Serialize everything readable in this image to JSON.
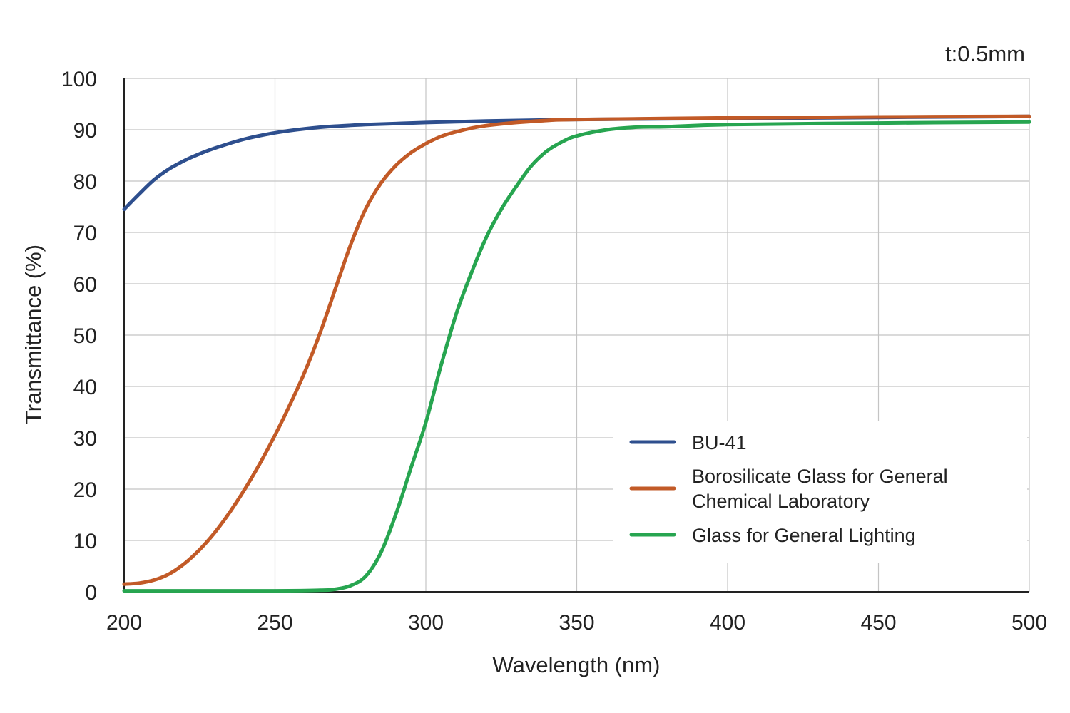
{
  "chart_data": {
    "type": "line",
    "annotation": "t:0.5mm",
    "xlabel": "Wavelength (nm)",
    "ylabel": "Transmittance (%)",
    "xlim": [
      200,
      500
    ],
    "ylim": [
      0,
      100
    ],
    "x_ticks": [
      "200",
      "250",
      "300",
      "350",
      "400",
      "450",
      "500"
    ],
    "y_ticks": [
      "0",
      "10",
      "20",
      "30",
      "40",
      "50",
      "60",
      "70",
      "80",
      "90",
      "100"
    ],
    "grid": true,
    "legend_position": "lower-right",
    "series": [
      {
        "name": "BU-41",
        "color": "#2e4f8e",
        "x": [
          200,
          205,
          210,
          215,
          220,
          225,
          230,
          240,
          250,
          260,
          270,
          280,
          290,
          300,
          320,
          340,
          350,
          400,
          450,
          500
        ],
        "y": [
          74.5,
          77.5,
          80.3,
          82.4,
          84.0,
          85.3,
          86.4,
          88.2,
          89.4,
          90.2,
          90.7,
          91.0,
          91.2,
          91.4,
          91.7,
          91.9,
          92.0,
          92.2,
          92.4,
          92.6
        ]
      },
      {
        "name": "Borosilicate Glass for General Chemical Laboratory",
        "color": "#c25a27",
        "x": [
          200,
          205,
          210,
          215,
          220,
          225,
          230,
          235,
          240,
          245,
          250,
          255,
          260,
          265,
          270,
          275,
          280,
          285,
          290,
          295,
          300,
          305,
          310,
          315,
          320,
          330,
          340,
          350,
          400,
          450,
          500
        ],
        "y": [
          1.5,
          1.7,
          2.3,
          3.5,
          5.5,
          8.2,
          11.5,
          15.5,
          20.0,
          25.0,
          30.5,
          36.5,
          43.0,
          50.5,
          59.0,
          67.5,
          74.5,
          79.5,
          83.0,
          85.5,
          87.3,
          88.7,
          89.6,
          90.3,
          90.8,
          91.4,
          91.8,
          92.0,
          92.3,
          92.5,
          92.6
        ]
      },
      {
        "name": "Glass for General Lighting",
        "color": "#27a550",
        "x": [
          200,
          250,
          265,
          270,
          275,
          280,
          285,
          290,
          295,
          300,
          305,
          310,
          315,
          320,
          325,
          330,
          335,
          340,
          345,
          350,
          360,
          370,
          380,
          400,
          450,
          500
        ],
        "y": [
          0.2,
          0.2,
          0.3,
          0.5,
          1.2,
          3.0,
          7.5,
          15.0,
          24.0,
          33.0,
          44.0,
          54.0,
          62.0,
          69.0,
          74.5,
          79.0,
          83.0,
          85.8,
          87.6,
          88.8,
          90.0,
          90.5,
          90.6,
          91.0,
          91.3,
          91.5
        ]
      }
    ]
  }
}
